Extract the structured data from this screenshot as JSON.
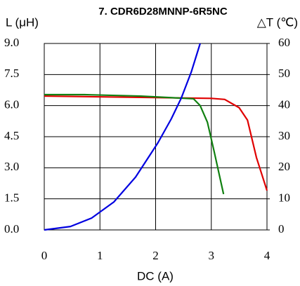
{
  "chart_data": {
    "type": "line",
    "title": "7. CDR6D28MNNP-6R5NC",
    "y_label": "L (μH)",
    "y2_label": "△T (℃)",
    "x_label": "DC (A)",
    "xlim": [
      0,
      4
    ],
    "xticks": [
      0,
      1,
      2,
      3,
      4
    ],
    "ylim": [
      0,
      9
    ],
    "yticks": [
      {
        "value": 0,
        "label": "0.0"
      },
      1.5,
      {
        "value": 3,
        "label": "3.0"
      },
      4.5,
      {
        "value": 6,
        "label": "6.0"
      },
      7.5,
      {
        "value": 9,
        "label": "9.0"
      }
    ],
    "y2lim": [
      0,
      60
    ],
    "y2ticks": [
      0,
      10,
      20,
      30,
      40,
      50,
      60
    ],
    "grid": true,
    "series": [
      {
        "color": "#e00000",
        "x": [
          0,
          3.0,
          3.24,
          3.5,
          3.65,
          3.81,
          4.0
        ],
        "values": [
          6.46,
          6.35,
          6.3,
          5.9,
          5.3,
          3.5,
          1.9
        ]
      },
      {
        "color": "#108010",
        "x": [
          0,
          0.72,
          1.73,
          2.68,
          2.8,
          2.93,
          3.05,
          3.22
        ],
        "values": [
          6.53,
          6.53,
          6.46,
          6.33,
          6.0,
          5.2,
          3.8,
          1.73
        ]
      },
      {
        "color": "#0000e0",
        "axis": "y2",
        "x": [
          0,
          0.47,
          0.85,
          1.25,
          1.64,
          2.04,
          2.28,
          2.46,
          2.64,
          2.8
        ],
        "values": [
          0,
          1.1,
          3.8,
          9,
          17,
          28,
          35.7,
          42.4,
          50.8,
          60
        ]
      }
    ]
  }
}
